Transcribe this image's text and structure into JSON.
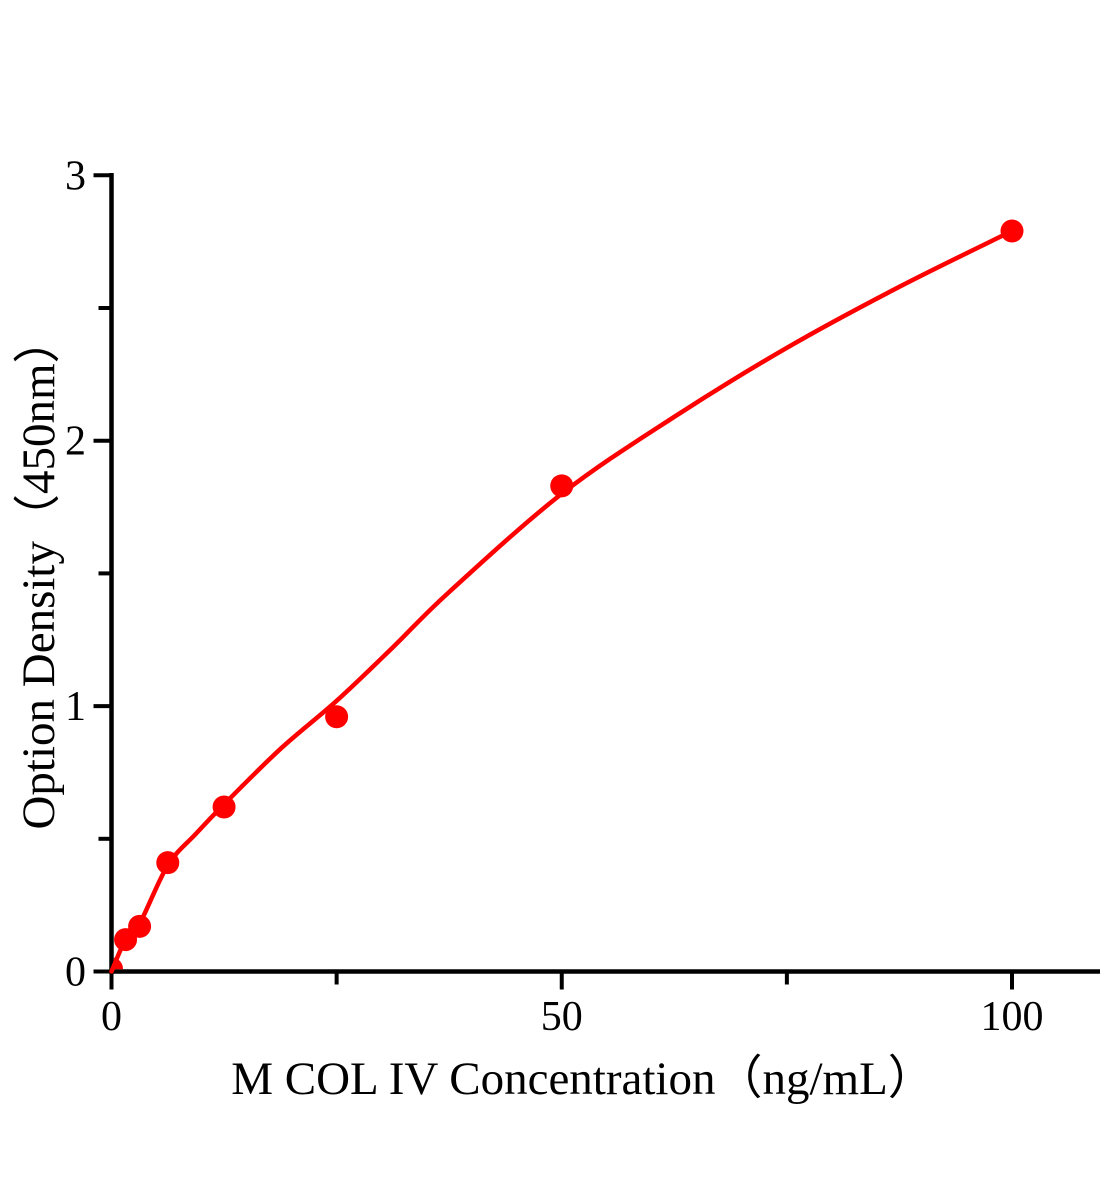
{
  "figure": {
    "background_color": "#ffffff",
    "axis_color": "#000000",
    "accent_red": "#ff0000"
  },
  "chart_data": {
    "type": "scatter",
    "title": "",
    "xlabel": "M COL IV Concentration（ng/mL）",
    "ylabel": "Option Density（450nm）",
    "xlim": [
      0,
      110
    ],
    "ylim": [
      0,
      3
    ],
    "grid": false,
    "legend": "none",
    "x_axis": {
      "major_ticks": [
        0,
        50,
        100
      ],
      "major_tick_labels": [
        "0",
        "50",
        "100"
      ],
      "minor_ticks": [
        25,
        75
      ]
    },
    "y_axis": {
      "major_ticks": [
        0,
        1,
        2,
        3
      ],
      "major_tick_labels": [
        "0",
        "1",
        "2",
        "3"
      ],
      "minor_ticks": [
        0.5,
        1.5,
        2.5
      ]
    },
    "series": [
      {
        "name": "standard-points",
        "type": "scatter",
        "marker": "circle",
        "marker_radius_px": 11.5,
        "color": "#ff0000",
        "x": [
          0,
          1.56,
          3.12,
          6.25,
          12.5,
          25,
          50,
          100
        ],
        "y": [
          0.01,
          0.12,
          0.17,
          0.41,
          0.62,
          0.96,
          1.83,
          2.79
        ]
      },
      {
        "name": "fitted-curve",
        "type": "line",
        "color": "#ff0000",
        "stroke_width_px": 4.5,
        "points": [
          [
            0,
            0.0
          ],
          [
            1.56,
            0.12
          ],
          [
            3.12,
            0.18
          ],
          [
            6.25,
            0.4
          ],
          [
            9.4,
            0.52
          ],
          [
            12.5,
            0.63
          ],
          [
            18.8,
            0.84
          ],
          [
            25,
            1.02
          ],
          [
            31.2,
            1.22
          ],
          [
            37.5,
            1.43
          ],
          [
            50,
            1.8
          ],
          [
            62.5,
            2.09
          ],
          [
            75,
            2.35
          ],
          [
            87.5,
            2.58
          ],
          [
            100,
            2.79
          ]
        ]
      }
    ]
  }
}
